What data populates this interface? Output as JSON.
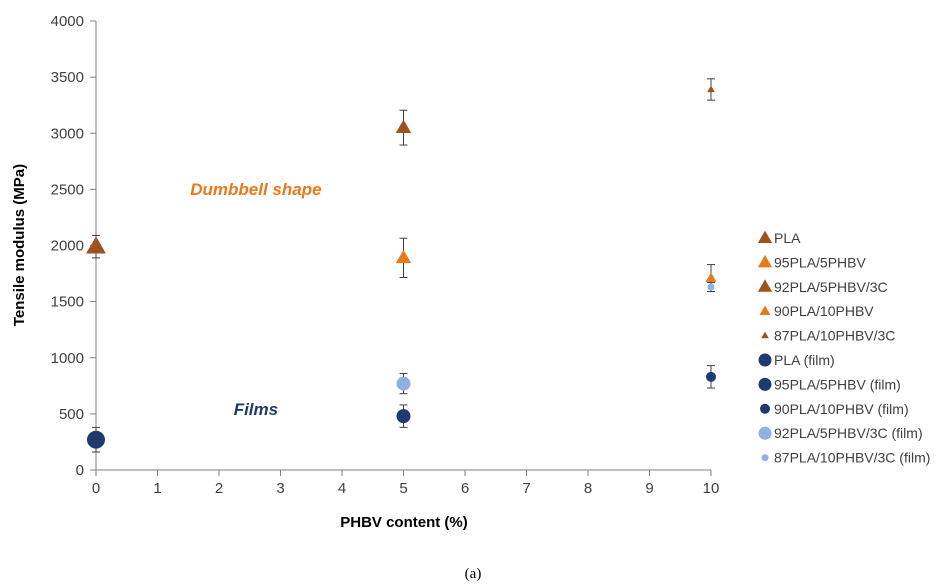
{
  "chart_data": {
    "type": "scatter",
    "xlabel": "PHBV content (%)",
    "ylabel": "Tensile modulus (MPa)",
    "xlim": [
      0,
      10
    ],
    "ylim": [
      0,
      4000
    ],
    "xticks": [
      0,
      1,
      2,
      3,
      4,
      5,
      6,
      7,
      8,
      9,
      10
    ],
    "yticks": [
      0,
      500,
      1000,
      1500,
      2000,
      2500,
      3000,
      3500,
      4000
    ],
    "grid": false,
    "legend_position": "right",
    "series": [
      {
        "name": "PLA",
        "marker": "triangle",
        "size": "large",
        "color": "#A0521C",
        "points": [
          {
            "x": 0,
            "y": 1990,
            "err": 100
          }
        ]
      },
      {
        "name": "95PLA/5PHBV",
        "marker": "triangle",
        "size": "medium",
        "color": "#E87A1E",
        "points": [
          {
            "x": 5,
            "y": 1890,
            "err": 175
          }
        ]
      },
      {
        "name": "92PLA/5PHBV/3C",
        "marker": "triangle",
        "size": "medium",
        "color": "#A0521C",
        "points": [
          {
            "x": 5,
            "y": 3050,
            "err": 155
          }
        ]
      },
      {
        "name": "90PLA/10PHBV",
        "marker": "triangle",
        "size": "small",
        "color": "#E87A1E",
        "points": [
          {
            "x": 10,
            "y": 1710,
            "err": 120
          }
        ]
      },
      {
        "name": "87PLA/10PHBV/3C",
        "marker": "triangle",
        "size": "tiny",
        "color": "#A0521C",
        "points": [
          {
            "x": 10,
            "y": 3390,
            "err": 95
          }
        ]
      },
      {
        "name": "PLA (film)",
        "marker": "circle",
        "size": "large",
        "color": "#1F3A70",
        "points": [
          {
            "x": 0,
            "y": 270,
            "err": 110
          }
        ]
      },
      {
        "name": "95PLA/5PHBV (film)",
        "marker": "circle",
        "size": "medium",
        "color": "#1F3A70",
        "points": [
          {
            "x": 5,
            "y": 480,
            "err": 100
          }
        ]
      },
      {
        "name": "90PLA/10PHBV (film)",
        "marker": "circle",
        "size": "small",
        "color": "#1F3A70",
        "points": [
          {
            "x": 10,
            "y": 830,
            "err": 100
          }
        ]
      },
      {
        "name": "92PLA/5PHBV/3C (film)",
        "marker": "circle",
        "size": "medium",
        "color": "#8FB0E0",
        "points": [
          {
            "x": 5,
            "y": 770,
            "err": 90
          }
        ]
      },
      {
        "name": "87PLA/10PHBV/3C (film)",
        "marker": "circle",
        "size": "tiny",
        "color": "#8FB0E0",
        "points": [
          {
            "x": 10,
            "y": 1630,
            "err": 40
          }
        ]
      }
    ],
    "annotations": [
      {
        "text": "Dumbbell shape",
        "x": 2.6,
        "y": 2450,
        "color": "#E87A1E"
      },
      {
        "text": "Films",
        "x": 2.6,
        "y": 490,
        "color": "#1F3A70"
      }
    ],
    "caption": "(a)"
  }
}
